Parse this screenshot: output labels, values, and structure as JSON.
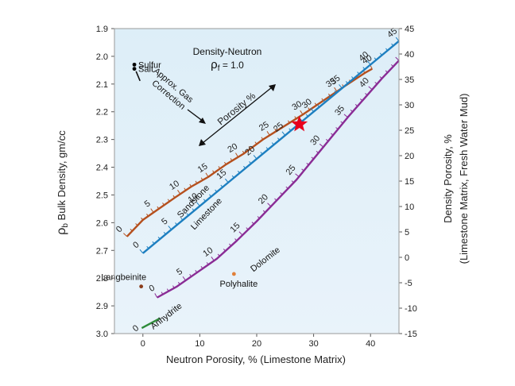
{
  "chart_data": {
    "type": "line",
    "title": "Density-Neutron",
    "subtitle_symbol": "ρ",
    "subtitle_sub": "f",
    "subtitle_value": " = 1.0",
    "xlabel": "Neutron Porosity, % (Limestone Matrix)",
    "ylabel_symbol": "ρ",
    "ylabel_sub": "b",
    "ylabel_text": " Bulk Density, gm/cc",
    "y2label_line1": "Density Porosity, %",
    "y2label_line2": "(Limestone Matrix, Fresh Water Mud)",
    "xlim": [
      -5,
      45
    ],
    "ylim": [
      1.9,
      3.0
    ],
    "y2lim": [
      -15,
      45
    ],
    "x_ticks": [
      {
        "value": 0,
        "label": "0"
      },
      {
        "value": 10,
        "label": "10"
      },
      {
        "value": 20,
        "label": "20"
      },
      {
        "value": 30,
        "label": "30"
      },
      {
        "value": 40,
        "label": "40"
      }
    ],
    "y_ticks": [
      {
        "value": 1.9,
        "label": "1.9"
      },
      {
        "value": 2.0,
        "label": "2.0"
      },
      {
        "value": 2.1,
        "label": "2.1"
      },
      {
        "value": 2.2,
        "label": "2.2"
      },
      {
        "value": 2.3,
        "label": "2.3"
      },
      {
        "value": 2.4,
        "label": "2.4"
      },
      {
        "value": 2.5,
        "label": "2.5"
      },
      {
        "value": 2.6,
        "label": "2.6"
      },
      {
        "value": 2.7,
        "label": "2.7"
      },
      {
        "value": 2.8,
        "label": "2.8"
      },
      {
        "value": 2.9,
        "label": "2.9"
      },
      {
        "value": 3.0,
        "label": "3.0"
      }
    ],
    "y2_ticks": [
      {
        "value": 45,
        "label": "45"
      },
      {
        "value": 40,
        "label": "40"
      },
      {
        "value": 35,
        "label": "35"
      },
      {
        "value": 30,
        "label": "30"
      },
      {
        "value": 25,
        "label": "25"
      },
      {
        "value": 20,
        "label": "20"
      },
      {
        "value": 15,
        "label": "15"
      },
      {
        "value": 10,
        "label": "10"
      },
      {
        "value": 5,
        "label": "5"
      },
      {
        "value": 0,
        "label": "0"
      },
      {
        "value": -5,
        "label": "-5"
      },
      {
        "value": -10,
        "label": "-10"
      },
      {
        "value": -15,
        "label": "-15"
      }
    ],
    "series": [
      {
        "name": "Sandstone",
        "color": "#b5501e",
        "x": [
          -2.8,
          0.0,
          2.8,
          5.6,
          8.5,
          11.5,
          14.6,
          17.8,
          21.1,
          24.6,
          28.1,
          31.7,
          35.3,
          39.0,
          40.3
        ],
        "y": [
          2.65,
          2.59,
          2.55,
          2.51,
          2.47,
          2.435,
          2.39,
          2.35,
          2.3,
          2.255,
          2.21,
          2.16,
          2.11,
          2.06,
          2.045
        ],
        "porosity": [
          0,
          3,
          6,
          9,
          12,
          15,
          18,
          21,
          24,
          27,
          30,
          33,
          36,
          39,
          40
        ],
        "labeled": [
          0,
          5,
          10,
          15,
          20,
          25,
          30,
          35,
          40
        ]
      },
      {
        "name": "Limestone",
        "color": "#1d7fc0",
        "x": [
          0,
          5,
          10,
          15,
          20,
          25,
          30,
          35,
          40,
          45
        ],
        "y": [
          2.71,
          2.625,
          2.54,
          2.455,
          2.37,
          2.285,
          2.2,
          2.115,
          2.03,
          1.945
        ],
        "porosity": [
          0,
          5,
          10,
          15,
          20,
          25,
          30,
          35,
          40,
          45
        ],
        "labeled": [
          0,
          5,
          10,
          15,
          20,
          25,
          30,
          35,
          40,
          45
        ]
      },
      {
        "name": "Dolomite",
        "color": "#8a2c95",
        "x": [
          2.5,
          6.0,
          9.5,
          13.0,
          16.5,
          20.0,
          23.5,
          27.0,
          30.0,
          33.0,
          36.0,
          39.0,
          42.0,
          45.0
        ],
        "y": [
          2.87,
          2.83,
          2.78,
          2.73,
          2.665,
          2.595,
          2.52,
          2.445,
          2.37,
          2.295,
          2.22,
          2.15,
          2.08,
          2.015
        ],
        "porosity": [
          0,
          3.5,
          7,
          10.5,
          14,
          17.5,
          21,
          24.5,
          28,
          31.5,
          35,
          38.5,
          42,
          45
        ],
        "labeled": [
          0,
          5,
          10,
          15,
          20,
          25,
          30,
          35,
          40
        ]
      },
      {
        "name": "Anhydrite",
        "color": "#2e8b3a",
        "x": [
          -0.2,
          3.0
        ],
        "y": [
          2.98,
          2.945
        ],
        "labeled": [
          0
        ]
      }
    ],
    "points": [
      {
        "name": "Sulfur",
        "x": -1.5,
        "y": 2.03,
        "color": "#000000"
      },
      {
        "name": "Salt",
        "x": -1.5,
        "y": 2.045,
        "color": "#000000"
      },
      {
        "name": "Langbeinite",
        "x": -0.3,
        "y": 2.83,
        "color": "#8a3c1a"
      },
      {
        "name": "Polyhalite",
        "x": 16.0,
        "y": 2.785,
        "color": "#e0803a"
      }
    ],
    "star": {
      "x": 27.5,
      "y": 2.245,
      "color": "#e8001c"
    },
    "annotations": {
      "gas_correction_line1": "Approx. Gas",
      "gas_correction_line2": "Correction",
      "porosity_arrow_label": "Porosity %"
    },
    "colors": {
      "plot_bg_top": "#ddeef8",
      "plot_bg_bottom": "#e9f3fa",
      "frame": "#999999"
    }
  }
}
